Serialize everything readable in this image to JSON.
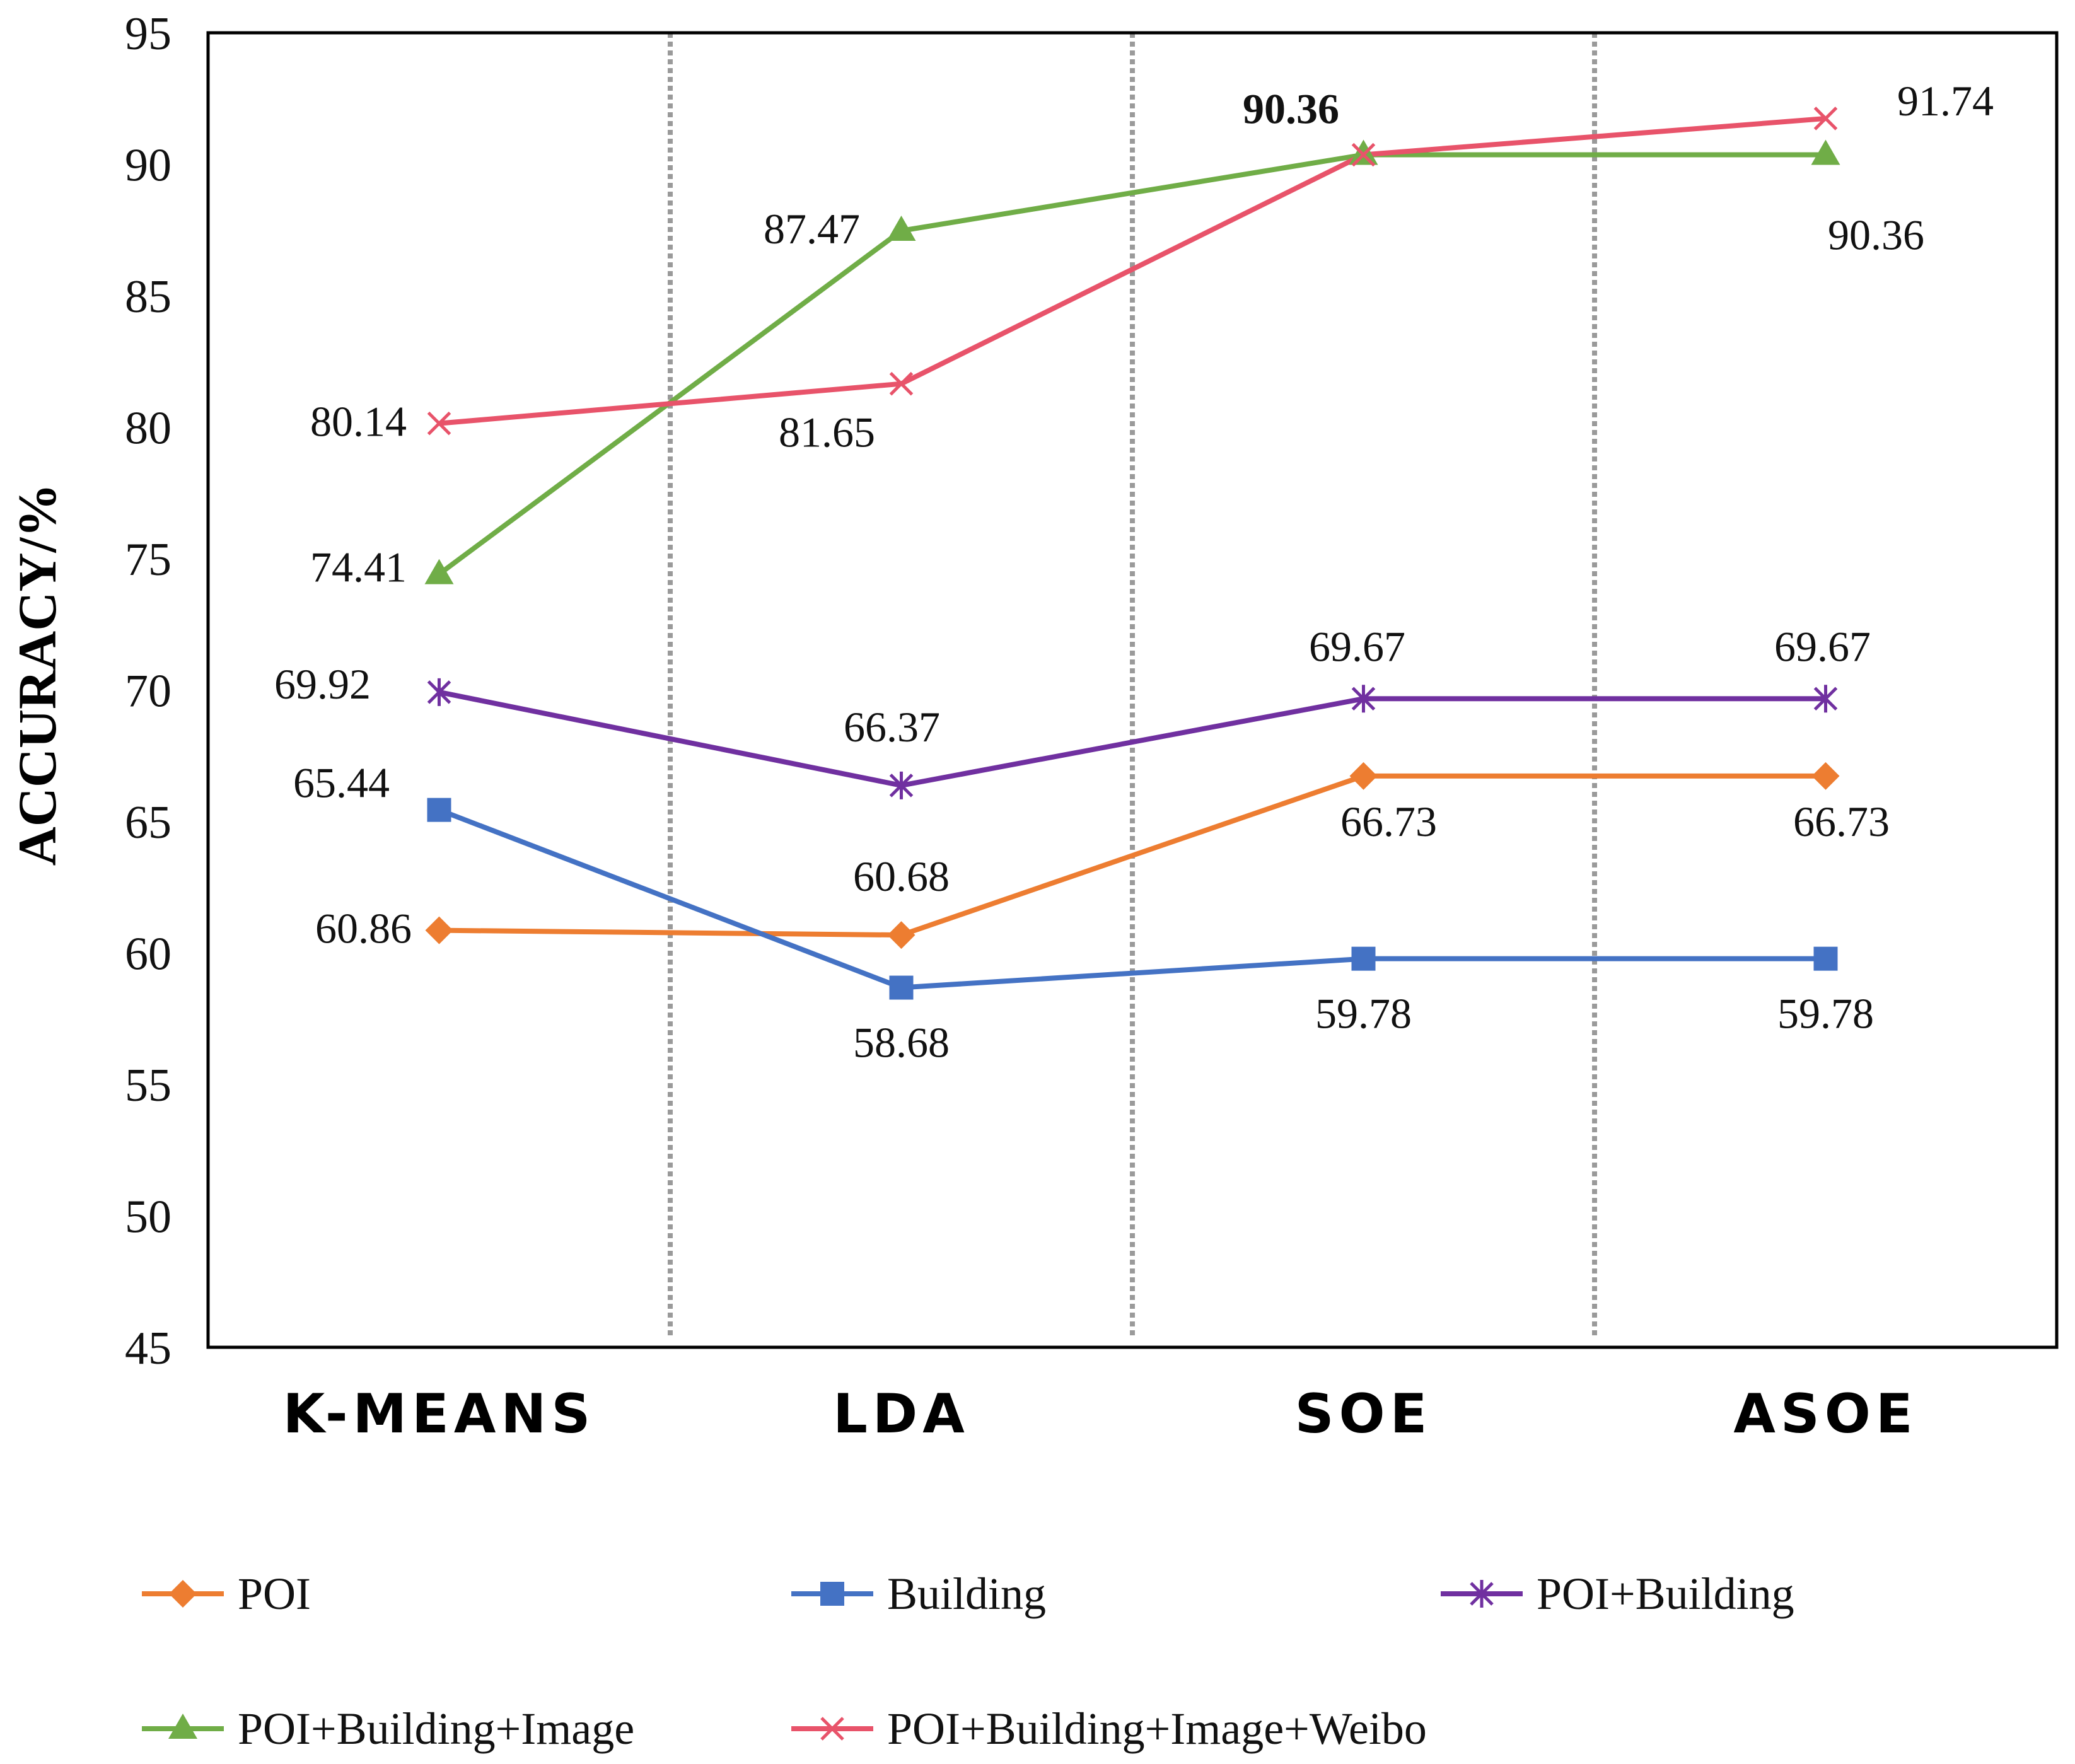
{
  "chart_data": {
    "type": "line",
    "title": "",
    "xlabel": "",
    "ylabel": "ACCURACY/%",
    "ylim": [
      45,
      95
    ],
    "yticks": [
      "45",
      "50",
      "55",
      "60",
      "65",
      "70",
      "75",
      "80",
      "85",
      "90",
      "95"
    ],
    "categories": [
      "K-MEANS",
      "LDA",
      "SOE",
      "ASOE"
    ],
    "grid": "vertical dotted separators between categories",
    "legend_position": "bottom",
    "series": [
      {
        "key": "poi",
        "name": "POI",
        "color": "#ED7D31",
        "marker": "diamond",
        "values": [
          60.86,
          60.68,
          66.73,
          66.73
        ],
        "labels": [
          "60.86",
          "60.68",
          "66.73",
          "66.73"
        ]
      },
      {
        "key": "building",
        "name": "Building",
        "color": "#4472C4",
        "marker": "square",
        "values": [
          65.44,
          58.68,
          59.78,
          59.78
        ],
        "labels": [
          "65.44",
          "58.68",
          "59.78",
          "59.78"
        ]
      },
      {
        "key": "poi-building",
        "name": "POI+Building",
        "color": "#7030A0",
        "marker": "asterisk",
        "values": [
          69.92,
          66.37,
          69.67,
          69.67
        ],
        "labels": [
          "69.92",
          "66.37",
          "69.67",
          "69.67"
        ]
      },
      {
        "key": "poi-building-image",
        "name": "POI+Building+Image",
        "color": "#70AD47",
        "marker": "triangle",
        "values": [
          74.41,
          87.47,
          90.36,
          90.36
        ],
        "labels": [
          "74.41",
          "87.47",
          "90.36",
          "90.36"
        ]
      },
      {
        "key": "poi-building-image-weibo",
        "name": "POI+Building+Image+Weibo",
        "color": "#E8536A",
        "marker": "x",
        "values": [
          80.14,
          81.65,
          90.36,
          91.74
        ],
        "labels": [
          "80.14",
          "81.65",
          "",
          "91.74"
        ]
      }
    ]
  }
}
